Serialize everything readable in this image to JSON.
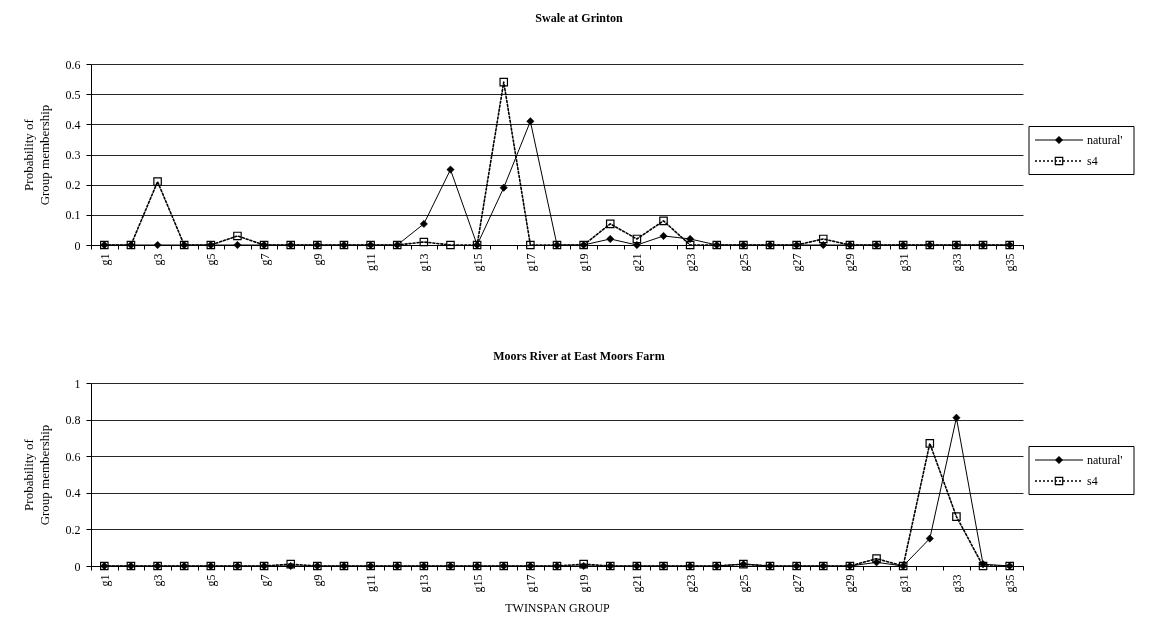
{
  "chart_data": [
    {
      "type": "line",
      "title": "Swale at Grinton",
      "ylabel": "Probability of Group membership",
      "categories": [
        "g1",
        null,
        "g3",
        null,
        "g5",
        null,
        "g7",
        null,
        "g9",
        null,
        "g11",
        null,
        "g13",
        null,
        "g15",
        null,
        "g17",
        null,
        "g19",
        null,
        "g21",
        null,
        "g23",
        null,
        "g25",
        null,
        "g27",
        null,
        "g29",
        null,
        "g31",
        null,
        "g33",
        null,
        "g35"
      ],
      "series": [
        {
          "name": "natural'",
          "color": "#000000",
          "marker": "diamond",
          "line_style": "solid",
          "values": [
            0,
            0,
            0,
            0,
            0,
            0,
            0,
            0,
            0,
            0,
            0,
            0,
            0.07,
            0.25,
            0,
            0.19,
            0.41,
            0,
            0,
            0.02,
            0,
            0.03,
            0.02,
            0,
            0,
            0,
            0,
            0,
            0,
            0,
            0,
            0,
            0,
            0,
            0
          ]
        },
        {
          "name": "s4",
          "color": "#000000",
          "marker": "square",
          "line_style": "dotted",
          "values": [
            0,
            0,
            0.21,
            0,
            0,
            0.03,
            0,
            0,
            0,
            0,
            0,
            0,
            0.01,
            0,
            0,
            0.54,
            0,
            0,
            0,
            0.07,
            0.02,
            0.08,
            0,
            0,
            0,
            0,
            0,
            0.02,
            0,
            0,
            0,
            0,
            0,
            0,
            0
          ]
        }
      ],
      "ylim": [
        0,
        0.6
      ],
      "yticks": [
        0,
        0.1,
        0.2,
        0.3,
        0.4,
        0.5,
        0.6
      ],
      "grid": "y",
      "legend": "right"
    },
    {
      "type": "line",
      "title": "Moors River at East Moors Farm",
      "xlabel": "TWINSPAN GROUP",
      "ylabel": "Probability of Group membership",
      "categories": [
        "g1",
        null,
        "g3",
        null,
        "g5",
        null,
        "g7",
        null,
        "g9",
        null,
        "g11",
        null,
        "g13",
        null,
        "g15",
        null,
        "g17",
        null,
        "g19",
        null,
        "g21",
        null,
        "g23",
        null,
        "g25",
        null,
        "g27",
        null,
        "g29",
        null,
        "g31",
        null,
        "g33",
        null,
        "g35"
      ],
      "series": [
        {
          "name": "natural'",
          "color": "#000000",
          "marker": "diamond",
          "line_style": "solid",
          "values": [
            0,
            0,
            0,
            0,
            0,
            0,
            0,
            0,
            0,
            0,
            0,
            0,
            0,
            0,
            0,
            0,
            0,
            0,
            0,
            0,
            0,
            0,
            0,
            0,
            0.01,
            0,
            0,
            0,
            0,
            0.02,
            0,
            0.15,
            0.81,
            0.01,
            0
          ]
        },
        {
          "name": "s4",
          "color": "#000000",
          "marker": "square",
          "line_style": "dotted",
          "values": [
            0,
            0,
            0,
            0,
            0,
            0,
            0,
            0.01,
            0,
            0,
            0,
            0,
            0,
            0,
            0,
            0,
            0,
            0,
            0.01,
            0,
            0,
            0,
            0,
            0,
            0.01,
            0,
            0,
            0,
            0,
            0.04,
            0,
            0.67,
            0.27,
            0,
            0
          ]
        }
      ],
      "ylim": [
        0,
        1
      ],
      "yticks": [
        0,
        0.2,
        0.4,
        0.6,
        0.8,
        1
      ],
      "grid": "y",
      "legend": "right"
    }
  ]
}
